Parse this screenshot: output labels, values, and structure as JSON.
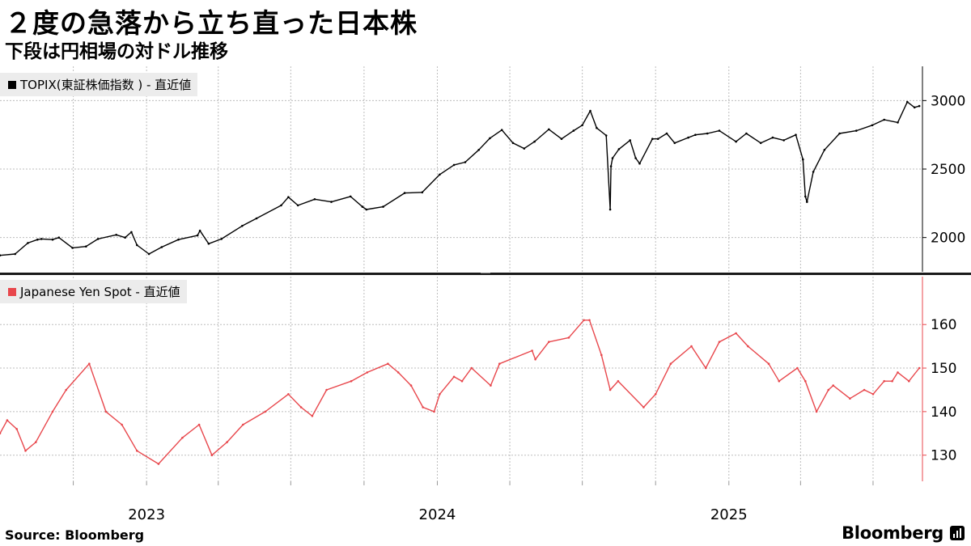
{
  "header": {
    "title": "２度の急落から立ち直った日本株",
    "subtitle": "下段は円相場の対ドル推移"
  },
  "footer": {
    "source": "Source:  Bloomberg",
    "brand": "Bloomberg"
  },
  "colors": {
    "topix": "#000000",
    "yen": "#e8474c",
    "grid": "#bdbdbd",
    "separator": "#1a1a1a"
  },
  "chart_data": [
    {
      "type": "line",
      "series": [
        {
          "name": "TOPIX(東証株価指数 ) - 直近値",
          "x": [
            "2022-07-01",
            "2022-07-20",
            "2022-08-05",
            "2022-08-17",
            "2022-08-22",
            "2022-09-05",
            "2022-09-13",
            "2022-09-30",
            "2022-10-17",
            "2022-11-01",
            "2022-11-24",
            "2022-12-05",
            "2022-12-13",
            "2022-12-20",
            "2023-01-04",
            "2023-01-20",
            "2023-02-10",
            "2023-03-06",
            "2023-03-09",
            "2023-03-20",
            "2023-04-05",
            "2023-05-01",
            "2023-05-19",
            "2023-06-19",
            "2023-06-28",
            "2023-07-10",
            "2023-07-31",
            "2023-08-21",
            "2023-09-14",
            "2023-09-29",
            "2023-10-04",
            "2023-10-25",
            "2023-11-21",
            "2023-12-13",
            "2024-01-04",
            "2024-01-22",
            "2024-02-05",
            "2024-02-22",
            "2024-03-07",
            "2024-03-22",
            "2024-04-05",
            "2024-04-19",
            "2024-05-02",
            "2024-05-20",
            "2024-06-05",
            "2024-06-20",
            "2024-07-01",
            "2024-07-11",
            "2024-07-19",
            "2024-07-31",
            "2024-08-05",
            "2024-08-06",
            "2024-08-08",
            "2024-08-16",
            "2024-08-30",
            "2024-09-06",
            "2024-09-11",
            "2024-09-27",
            "2024-10-04",
            "2024-10-15",
            "2024-10-25",
            "2024-11-11",
            "2024-11-20",
            "2024-12-05",
            "2024-12-20",
            "2025-01-10",
            "2025-01-23",
            "2025-02-10",
            "2025-02-25",
            "2025-03-11",
            "2025-03-26",
            "2025-04-04",
            "2025-04-07",
            "2025-04-09",
            "2025-04-17",
            "2025-05-01",
            "2025-05-20",
            "2025-06-10",
            "2025-06-30",
            "2025-07-15",
            "2025-08-01",
            "2025-08-13",
            "2025-08-22",
            "2025-08-28"
          ],
          "values": [
            1870,
            1880,
            1960,
            1985,
            1990,
            1985,
            2000,
            1925,
            1935,
            1990,
            2020,
            2000,
            2040,
            1945,
            1880,
            1930,
            1985,
            2015,
            2050,
            1955,
            1990,
            2085,
            2140,
            2235,
            2295,
            2235,
            2280,
            2260,
            2300,
            2225,
            2205,
            2225,
            2325,
            2330,
            2460,
            2530,
            2550,
            2640,
            2725,
            2785,
            2690,
            2650,
            2700,
            2790,
            2720,
            2780,
            2820,
            2925,
            2800,
            2745,
            2205,
            2520,
            2580,
            2645,
            2710,
            2580,
            2540,
            2720,
            2720,
            2760,
            2690,
            2730,
            2750,
            2760,
            2780,
            2700,
            2760,
            2690,
            2730,
            2710,
            2750,
            2570,
            2300,
            2260,
            2480,
            2640,
            2760,
            2780,
            2820,
            2860,
            2840,
            2990,
            2950,
            2960
          ],
          "ylim": [
            1750,
            3250
          ],
          "yticks": [
            2000,
            2500,
            3000
          ]
        }
      ]
    },
    {
      "type": "line",
      "series": [
        {
          "name": "Japanese Yen Spot - 直近値",
          "x": [
            "2022-07-01",
            "2022-07-10",
            "2022-07-22",
            "2022-08-02",
            "2022-08-15",
            "2022-09-05",
            "2022-09-22",
            "2022-10-21",
            "2022-11-11",
            "2022-12-01",
            "2022-12-20",
            "2023-01-16",
            "2023-02-15",
            "2023-03-08",
            "2023-03-24",
            "2023-04-12",
            "2023-05-02",
            "2023-05-30",
            "2023-06-28",
            "2023-07-14",
            "2023-07-28",
            "2023-08-15",
            "2023-09-15",
            "2023-10-05",
            "2023-10-31",
            "2023-11-13",
            "2023-11-29",
            "2023-12-14",
            "2023-12-28",
            "2024-01-04",
            "2024-01-22",
            "2024-02-01",
            "2024-02-13",
            "2024-03-08",
            "2024-03-19",
            "2024-04-29",
            "2024-05-03",
            "2024-05-20",
            "2024-06-14",
            "2024-07-03",
            "2024-07-10",
            "2024-07-25",
            "2024-08-05",
            "2024-08-15",
            "2024-09-16",
            "2024-10-01",
            "2024-10-20",
            "2024-11-15",
            "2024-12-03",
            "2024-12-20",
            "2025-01-10",
            "2025-01-25",
            "2025-02-20",
            "2025-03-05",
            "2025-03-28",
            "2025-04-07",
            "2025-04-21",
            "2025-05-06",
            "2025-05-12",
            "2025-06-02",
            "2025-06-20",
            "2025-07-01",
            "2025-07-15",
            "2025-07-25",
            "2025-08-01",
            "2025-08-15",
            "2025-08-28"
          ],
          "values": [
            135,
            138,
            136,
            131,
            133,
            140,
            145,
            151,
            140,
            137,
            131,
            128,
            134,
            137,
            130,
            133,
            137,
            140,
            144,
            141,
            139,
            145,
            147,
            149,
            151,
            149,
            146,
            141,
            140,
            144,
            148,
            147,
            150,
            146,
            151,
            154,
            152,
            156,
            157,
            161,
            161,
            153,
            145,
            147,
            141,
            144,
            151,
            155,
            150,
            156,
            158,
            155,
            151,
            147,
            150,
            147,
            140,
            145,
            146,
            143,
            145,
            144,
            147,
            147,
            149,
            147,
            150
          ],
          "ylim": [
            124,
            171
          ],
          "yticks": [
            130,
            140,
            150,
            160
          ]
        }
      ]
    }
  ],
  "x_axis": {
    "tick_labels": [
      "2023",
      "2024",
      "2025"
    ],
    "start": "2022-07-01",
    "end": "2025-09-01"
  }
}
